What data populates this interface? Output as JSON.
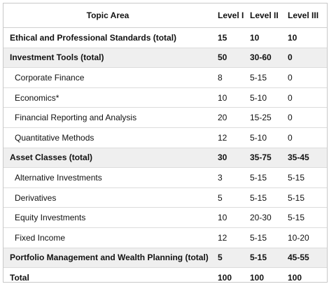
{
  "header": {
    "topic_area": "Topic Area",
    "level_1": "Level I",
    "level_2": "Level II",
    "level_3": "Level III"
  },
  "rows": [
    {
      "topic": "Ethical and Professional Standards (total)",
      "l1": "15",
      "l2": "10",
      "l3": "10"
    },
    {
      "topic": "Investment Tools (total)",
      "l1": "50",
      "l2": "30-60",
      "l3": "0"
    },
    {
      "topic": "Corporate Finance",
      "l1": "8",
      "l2": "5-15",
      "l3": "0"
    },
    {
      "topic": "Economics*",
      "l1": "10",
      "l2": "5-10",
      "l3": "0"
    },
    {
      "topic": "Financial Reporting and Analysis",
      "l1": "20",
      "l2": "15-25",
      "l3": "0"
    },
    {
      "topic": "Quantitative Methods",
      "l1": "12",
      "l2": "5-10",
      "l3": "0"
    },
    {
      "topic": "Asset Classes (total)",
      "l1": "30",
      "l2": "35-75",
      "l3": "35-45"
    },
    {
      "topic": "Alternative Investments",
      "l1": "3",
      "l2": "5-15",
      "l3": "5-15"
    },
    {
      "topic": "Derivatives",
      "l1": "5",
      "l2": "5-15",
      "l3": "5-15"
    },
    {
      "topic": "Equity Investments",
      "l1": "10",
      "l2": "20-30",
      "l3": "5-15"
    },
    {
      "topic": "Fixed Income",
      "l1": "12",
      "l2": "5-15",
      "l3": "10-20"
    },
    {
      "topic": "Portfolio Management and Wealth Planning (total)",
      "l1": "5",
      "l2": "5-15",
      "l3": "45-55"
    },
    {
      "topic": "Total",
      "l1": "100",
      "l2": "100",
      "l3": "100"
    }
  ],
  "colors": {
    "shade": "#efefef",
    "border": "#dcdcdc",
    "text": "#111111"
  }
}
